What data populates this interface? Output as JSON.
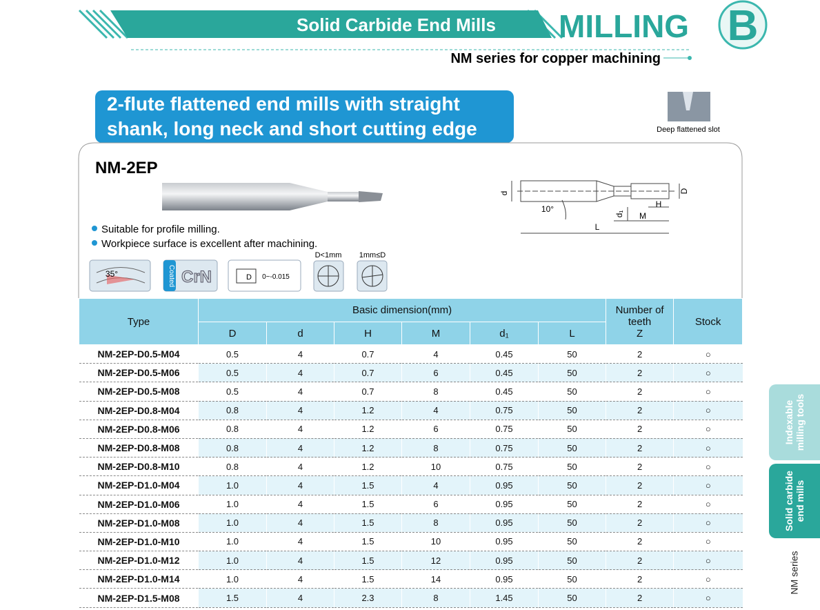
{
  "header": {
    "title": "Solid Carbide End Mills",
    "section": "MILLING",
    "letter": "B",
    "subtitle": "NM series for copper machining"
  },
  "banner": {
    "lines": [
      "2-flute flattened end mills with straight",
      "shank, long neck and short cutting edge"
    ]
  },
  "slot_icon": {
    "label": "Deep flattened slot"
  },
  "product": {
    "name": "NM-2EP",
    "features": [
      "Suitable for profile milling.",
      "Workpiece surface is excellent after machining."
    ],
    "drawing": {
      "d": "d",
      "angle": "10°",
      "L": "L",
      "d1": "d₁",
      "M": "M",
      "H": "H",
      "D": "D"
    },
    "icons": {
      "helix": "35°",
      "coated": "Coated",
      "coating": "CrN",
      "tolerance_symbol": "D",
      "tolerance": "0~-0.015",
      "small": "D<1mm",
      "large": "1mm≤D"
    }
  },
  "table": {
    "headers": {
      "type": "Type",
      "basic": "Basic dimension(mm)",
      "columns": [
        "D",
        "d",
        "H",
        "M",
        "d₁",
        "L"
      ],
      "teeth": [
        "Number of teeth",
        "Z"
      ],
      "stock": "Stock"
    },
    "rows": [
      [
        "NM-2EP-D0.5-M04",
        "0.5",
        "4",
        "0.7",
        "4",
        "0.45",
        "50",
        "2",
        "○"
      ],
      [
        "NM-2EP-D0.5-M06",
        "0.5",
        "4",
        "0.7",
        "6",
        "0.45",
        "50",
        "2",
        "○"
      ],
      [
        "NM-2EP-D0.5-M08",
        "0.5",
        "4",
        "0.7",
        "8",
        "0.45",
        "50",
        "2",
        "○"
      ],
      [
        "NM-2EP-D0.8-M04",
        "0.8",
        "4",
        "1.2",
        "4",
        "0.75",
        "50",
        "2",
        "○"
      ],
      [
        "NM-2EP-D0.8-M06",
        "0.8",
        "4",
        "1.2",
        "6",
        "0.75",
        "50",
        "2",
        "○"
      ],
      [
        "NM-2EP-D0.8-M08",
        "0.8",
        "4",
        "1.2",
        "8",
        "0.75",
        "50",
        "2",
        "○"
      ],
      [
        "NM-2EP-D0.8-M10",
        "0.8",
        "4",
        "1.2",
        "10",
        "0.75",
        "50",
        "2",
        "○"
      ],
      [
        "NM-2EP-D1.0-M04",
        "1.0",
        "4",
        "1.5",
        "4",
        "0.95",
        "50",
        "2",
        "○"
      ],
      [
        "NM-2EP-D1.0-M06",
        "1.0",
        "4",
        "1.5",
        "6",
        "0.95",
        "50",
        "2",
        "○"
      ],
      [
        "NM-2EP-D1.0-M08",
        "1.0",
        "4",
        "1.5",
        "8",
        "0.95",
        "50",
        "2",
        "○"
      ],
      [
        "NM-2EP-D1.0-M10",
        "1.0",
        "4",
        "1.5",
        "10",
        "0.95",
        "50",
        "2",
        "○"
      ],
      [
        "NM-2EP-D1.0-M12",
        "1.0",
        "4",
        "1.5",
        "12",
        "0.95",
        "50",
        "2",
        "○"
      ],
      [
        "NM-2EP-D1.0-M14",
        "1.0",
        "4",
        "1.5",
        "14",
        "0.95",
        "50",
        "2",
        "○"
      ],
      [
        "NM-2EP-D1.5-M08",
        "1.5",
        "4",
        "2.3",
        "8",
        "1.45",
        "50",
        "2",
        "○"
      ]
    ]
  },
  "side_tabs": [
    [
      "Indexable",
      "milling tools"
    ],
    [
      "Solid carbide",
      "end mills"
    ],
    [
      "NM series"
    ]
  ]
}
